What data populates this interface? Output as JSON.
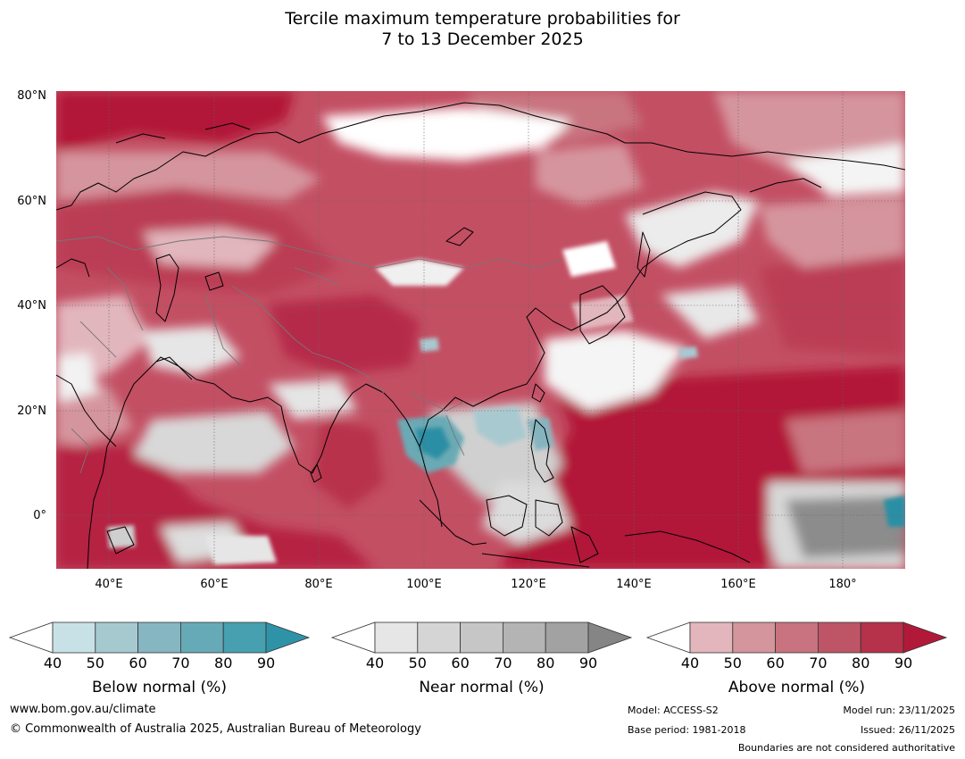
{
  "title": {
    "line1": "Tercile maximum temperature probabilities for",
    "line2": "7 to 13 December 2025"
  },
  "map": {
    "lat_labels": [
      "80°N",
      "60°N",
      "40°N",
      "20°N",
      "0°"
    ],
    "lon_labels": [
      "40°E",
      "60°E",
      "80°E",
      "100°E",
      "120°E",
      "140°E",
      "160°E",
      "180°"
    ],
    "colors": {
      "above": [
        "#e2b6bd",
        "#d5959e",
        "#c97480",
        "#be5466",
        "#b83148",
        "#b21838"
      ],
      "near": [
        "#e6e6e6",
        "#d4d4d4",
        "#c5c5c5",
        "#b3b3b3",
        "#a0a0a0",
        "#878787"
      ],
      "below": [
        "#cde3e8",
        "#a9c9d0",
        "#86b4be",
        "#6aaab5",
        "#47a0b0",
        "#2a8fa4"
      ]
    }
  },
  "colorbars": [
    {
      "id": "below",
      "title": "Below normal (%)",
      "ticks": [
        "40",
        "50",
        "60",
        "70",
        "80",
        "90"
      ],
      "colors": [
        "#c8e1e7",
        "#a6c9cf",
        "#86b6c1",
        "#67aab7",
        "#46a0b0",
        "#2f93a8"
      ]
    },
    {
      "id": "near",
      "title": "Near normal (%)",
      "ticks": [
        "40",
        "50",
        "60",
        "70",
        "80",
        "90"
      ],
      "colors": [
        "#e6e6e6",
        "#d5d5d5",
        "#c6c6c6",
        "#b4b4b4",
        "#a2a2a2",
        "#858585"
      ]
    },
    {
      "id": "above",
      "title": "Above normal (%)",
      "ticks": [
        "40",
        "50",
        "60",
        "70",
        "80",
        "90"
      ],
      "colors": [
        "#e2b6bc",
        "#d5959d",
        "#c8737f",
        "#bd5566",
        "#b6314a",
        "#b21939"
      ]
    }
  ],
  "footer": {
    "website": "www.bom.gov.au/climate",
    "copyright": "© Commonwealth of Australia 2025, Australian Bureau of Meteorology",
    "model": "Model: ACCESS-S2",
    "base_period": "Base period: 1981-2018",
    "model_run": "Model run: 23/11/2025",
    "issued": "Issued: 26/11/2025",
    "disclaimer": "Boundaries are not considered authoritative"
  }
}
